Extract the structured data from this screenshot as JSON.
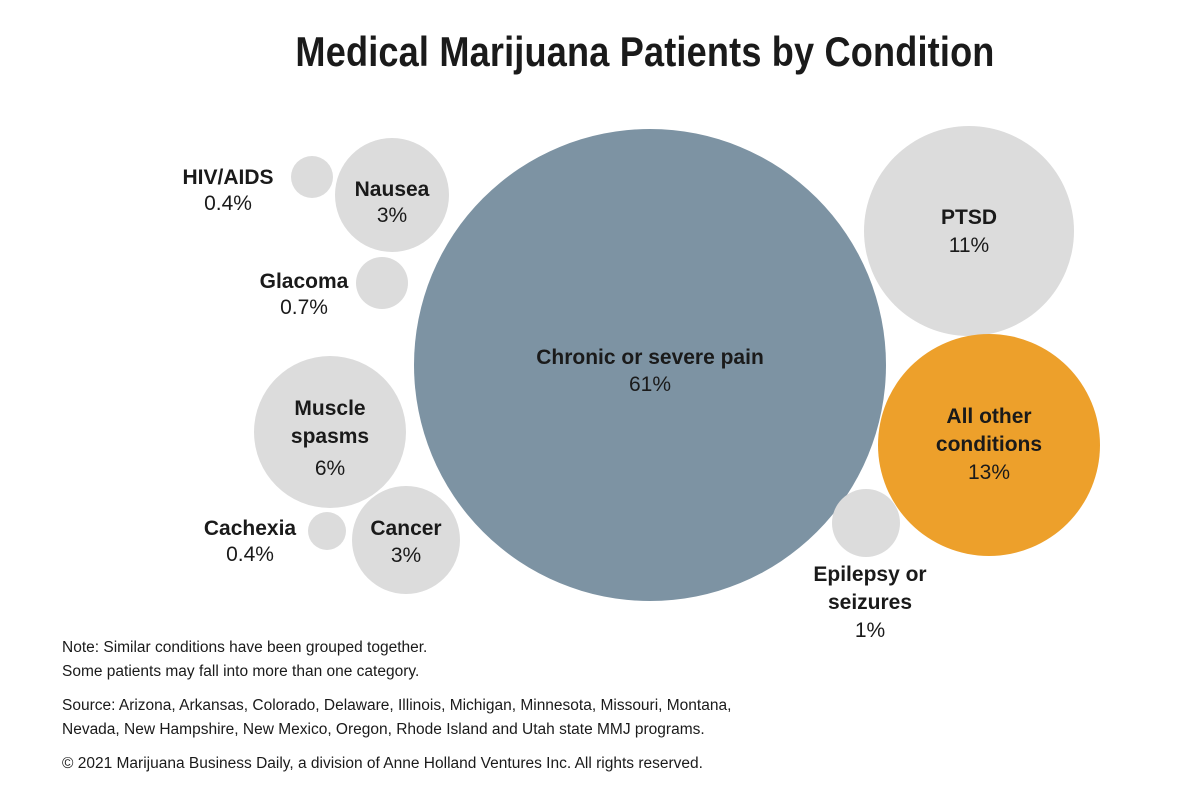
{
  "chart_data": {
    "type": "bubble",
    "title": "Medical Marijuana Patients by Condition",
    "unit": "%",
    "colors": {
      "default": "#dcdcdc",
      "pain": "#7d93a3",
      "other": "#eda02b"
    },
    "bubbles": [
      {
        "id": "hiv",
        "label_lines": [
          "HIV/AIDS"
        ],
        "value_label": "0.4%",
        "value": 0.4
      },
      {
        "id": "nausea",
        "label_lines": [
          "Nausea"
        ],
        "value_label": "3%",
        "value": 3
      },
      {
        "id": "glacoma",
        "label_lines": [
          "Glacoma"
        ],
        "value_label": "0.7%",
        "value": 0.7
      },
      {
        "id": "muscle",
        "label_lines": [
          "Muscle",
          "spasms"
        ],
        "value_label": "6%",
        "value": 6
      },
      {
        "id": "cachexia",
        "label_lines": [
          "Cachexia"
        ],
        "value_label": "0.4%",
        "value": 0.4
      },
      {
        "id": "cancer",
        "label_lines": [
          "Cancer"
        ],
        "value_label": "3%",
        "value": 3
      },
      {
        "id": "pain",
        "label_lines": [
          "Chronic or severe pain"
        ],
        "value_label": "61%",
        "value": 61
      },
      {
        "id": "ptsd",
        "label_lines": [
          "PTSD"
        ],
        "value_label": "11%",
        "value": 11
      },
      {
        "id": "other",
        "label_lines": [
          "All other",
          "conditions"
        ],
        "value_label": "13%",
        "value": 13
      },
      {
        "id": "epilepsy",
        "label_lines": [
          "Epilepsy or",
          "seizures"
        ],
        "value_label": "1%",
        "value": 1
      }
    ]
  },
  "footer": {
    "note_lines": [
      "Note: Similar conditions have been  grouped together.",
      "Some patients may fall into more than one category."
    ],
    "source_lines": [
      "Source: Arizona, Arkansas, Colorado, Delaware, Illinois, Michigan, Minnesota, Missouri, Montana,",
      "Nevada, New Hampshire, New Mexico, Oregon, Rhode Island and Utah state MMJ programs."
    ],
    "copyright": "© 2021 Marijuana Business Daily, a division of Anne Holland Ventures Inc. All rights reserved."
  }
}
